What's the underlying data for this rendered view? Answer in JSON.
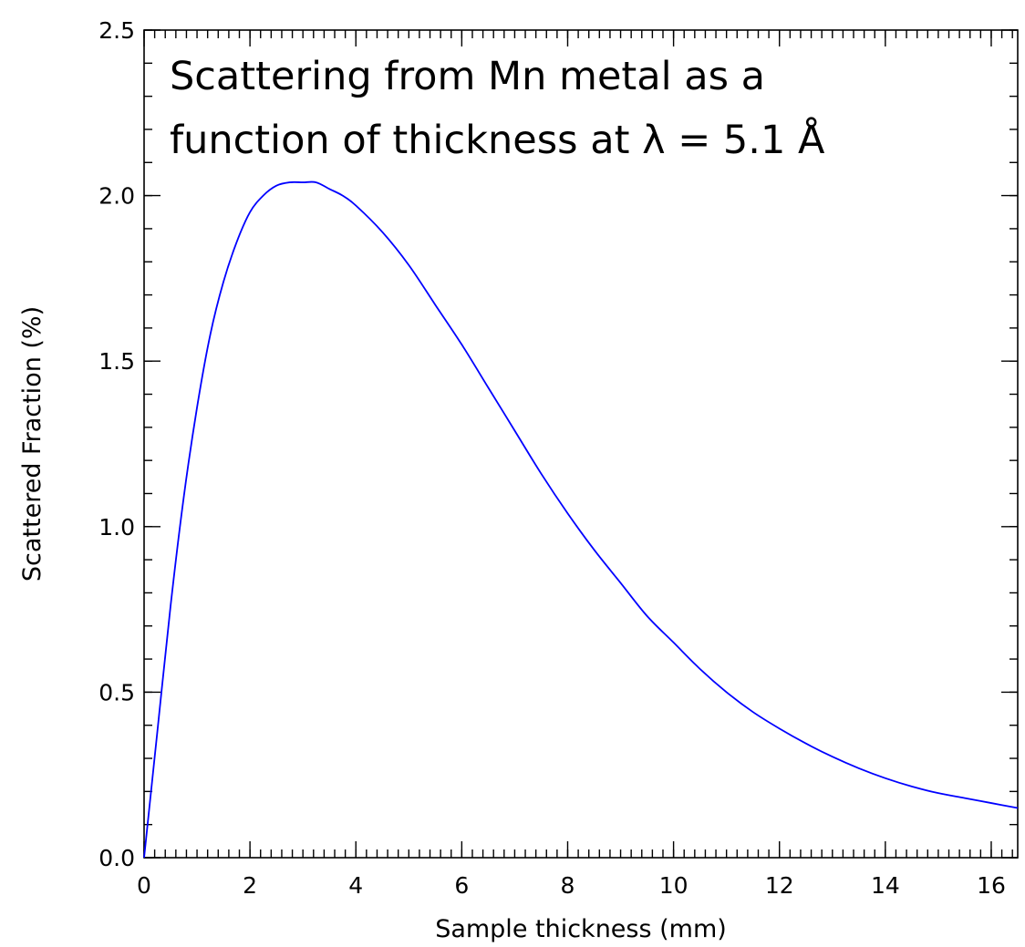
{
  "chart_data": {
    "type": "line",
    "title": "",
    "xlabel": "Sample thickness (mm)",
    "ylabel": "Scattered Fraction (%)",
    "xlim": [
      0,
      16.5
    ],
    "ylim": [
      0,
      2.5
    ],
    "x_ticks": [
      {
        "value": 0,
        "label": "0"
      },
      {
        "value": 2,
        "label": "2"
      },
      {
        "value": 4,
        "label": "4"
      },
      {
        "value": 6,
        "label": "6"
      },
      {
        "value": 8,
        "label": "8"
      },
      {
        "value": 10,
        "label": "10"
      },
      {
        "value": 12,
        "label": "12"
      },
      {
        "value": 14,
        "label": "14"
      },
      {
        "value": 16,
        "label": "16"
      }
    ],
    "y_ticks": [
      {
        "value": 0,
        "label": "0.0"
      },
      {
        "value": 0.5,
        "label": "0.5"
      },
      {
        "value": 1.0,
        "label": "1.0"
      },
      {
        "value": 1.5,
        "label": "1.5"
      },
      {
        "value": 2.0,
        "label": "2.0"
      },
      {
        "value": 2.5,
        "label": "2.5"
      }
    ],
    "x_minor_step": 0.2,
    "y_minor_step": 0.1,
    "grid": false,
    "annotation_lines": [
      "Scattering from Mn metal as a",
      "function of thickness at  λ = 5.1 Å"
    ],
    "series": [
      {
        "color": "#0000ff",
        "x": [
          0,
          0.25,
          0.5,
          0.75,
          1.0,
          1.25,
          1.5,
          1.75,
          2.0,
          2.25,
          2.5,
          2.75,
          3.0,
          3.25,
          3.5,
          3.75,
          4.0,
          4.5,
          5.0,
          5.5,
          6.0,
          6.5,
          7.0,
          7.5,
          8.0,
          8.5,
          9.0,
          9.5,
          10.0,
          10.5,
          11.0,
          11.5,
          12.0,
          12.5,
          13.0,
          13.5,
          14.0,
          14.5,
          15.0,
          15.5,
          16.0,
          16.5
        ],
        "y": [
          0.0,
          0.38,
          0.76,
          1.09,
          1.36,
          1.58,
          1.74,
          1.86,
          1.95,
          2.0,
          2.03,
          2.04,
          2.04,
          2.04,
          2.02,
          2.0,
          1.97,
          1.89,
          1.79,
          1.67,
          1.55,
          1.42,
          1.29,
          1.16,
          1.04,
          0.93,
          0.83,
          0.73,
          0.65,
          0.57,
          0.5,
          0.44,
          0.39,
          0.345,
          0.305,
          0.27,
          0.24,
          0.215,
          0.195,
          0.18,
          0.165,
          0.15
        ]
      }
    ]
  }
}
